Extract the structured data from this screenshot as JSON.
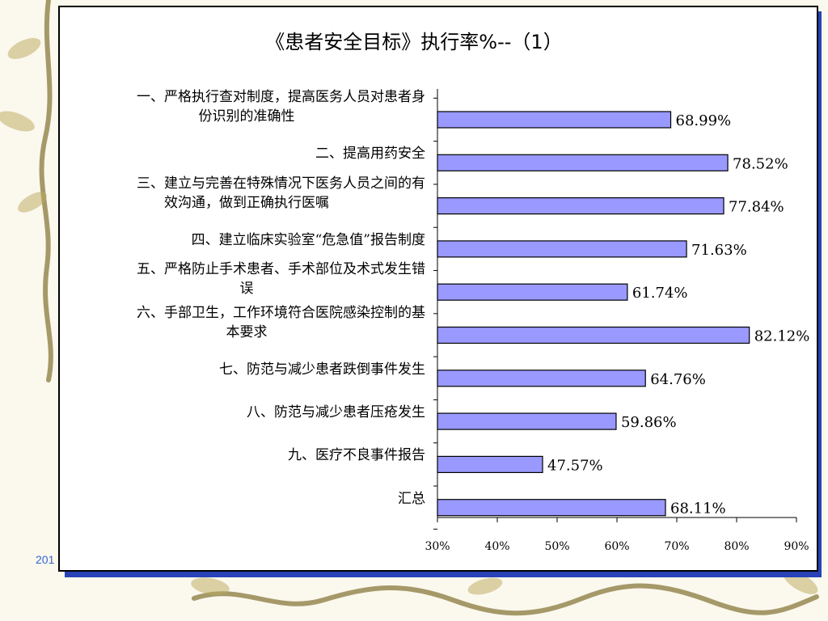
{
  "slide": {
    "footer_text": "201"
  },
  "chart_data": {
    "type": "bar",
    "orientation": "horizontal",
    "title": "《患者安全目标》执行率%--（1）",
    "categories": [
      [
        "一、严格执行查对制度，提高医务人员对患者身",
        "份识别的准确性"
      ],
      [
        "二、提高用药安全"
      ],
      [
        "三、建立与完善在特殊情况下医务人员之间的有",
        "效沟通，做到正确执行医嘱"
      ],
      [
        "四、建立临床实验室“危急值”报告制度"
      ],
      [
        "五、严格防止手术患者、手术部位及术式发生错",
        "误"
      ],
      [
        "六、手部卫生，工作环境符合医院感染控制的基",
        "本要求"
      ],
      [
        "七、防范与减少患者跌倒事件发生"
      ],
      [
        "八、防范与减少患者压疮发生"
      ],
      [
        "九、医疗不良事件报告"
      ],
      [
        "汇总"
      ]
    ],
    "values": [
      68.99,
      78.52,
      77.84,
      71.63,
      61.74,
      82.12,
      64.76,
      59.86,
      47.57,
      68.11
    ],
    "value_labels": [
      "68.99%",
      "78.52%",
      "77.84%",
      "71.63%",
      "61.74%",
      "82.12%",
      "64.76%",
      "59.86%",
      "47.57%",
      "68.11%"
    ],
    "xlim": [
      30,
      90
    ],
    "x_ticks": [
      "30%",
      "40%",
      "50%",
      "60%",
      "70%",
      "80%",
      "90%"
    ],
    "grid": false,
    "legend": false,
    "colors": {
      "bar_fill": "#9999ff",
      "bar_stroke": "#000000",
      "frame_shadow": "#2742b8"
    }
  }
}
